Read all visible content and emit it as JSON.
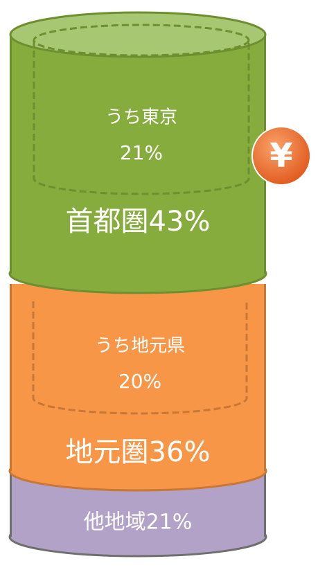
{
  "segments": [
    {
      "inner_label": "うち東京",
      "inner_value": "21%",
      "label": "首都圏43%"
    },
    {
      "inner_label": "うち地元県",
      "inner_value": "20%",
      "label": "地元圏36%"
    },
    {
      "label": "他地域21%"
    }
  ],
  "badge": "¥"
}
